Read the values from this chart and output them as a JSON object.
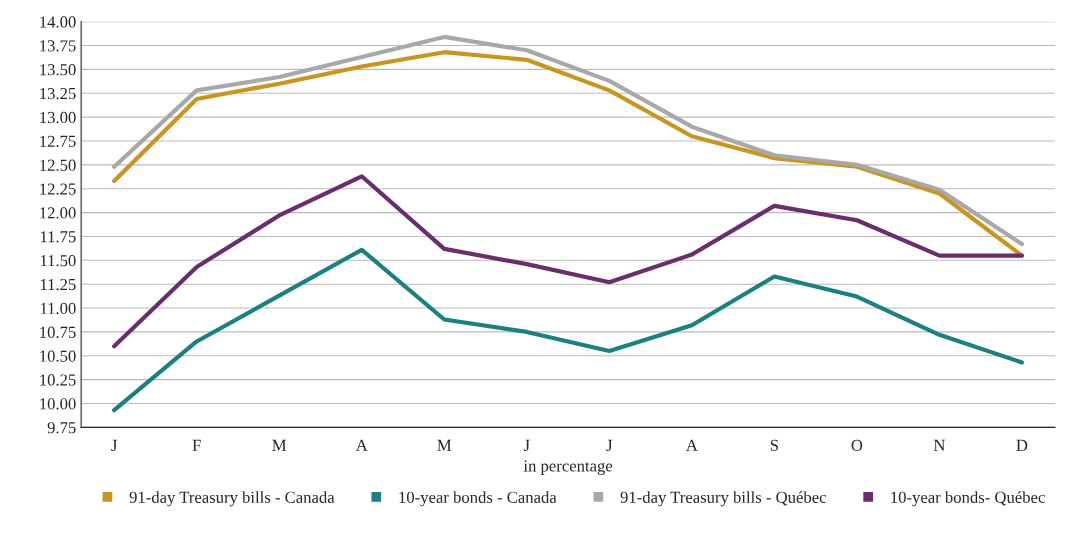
{
  "chart_data": {
    "type": "line",
    "xlabel": "in percentage",
    "categories": [
      "J",
      "F",
      "M",
      "A",
      "M",
      "J",
      "J",
      "A",
      "S",
      "O",
      "N",
      "D"
    ],
    "series": [
      {
        "name": "91-day Treasury bills - Canada",
        "color": "#c8961e",
        "values": [
          12.33,
          13.19,
          13.35,
          13.53,
          13.68,
          13.6,
          13.28,
          12.8,
          12.57,
          12.48,
          12.2,
          11.55
        ]
      },
      {
        "name": "10-year bonds - Canada",
        "color": "#1a8080",
        "values": [
          9.93,
          10.65,
          11.13,
          11.61,
          10.88,
          10.75,
          10.55,
          10.82,
          11.33,
          11.12,
          10.72,
          10.43
        ]
      },
      {
        "name": "91-day Treasury bills - Québec",
        "color": "#a8a8a8",
        "values": [
          12.48,
          13.28,
          13.42,
          13.63,
          13.84,
          13.7,
          13.38,
          12.9,
          12.6,
          12.5,
          12.24,
          11.67
        ]
      },
      {
        "name": "10-year bonds- Québec",
        "color": "#6a2d6e",
        "values": [
          10.6,
          11.43,
          11.97,
          12.38,
          11.62,
          11.46,
          11.27,
          11.56,
          12.07,
          11.92,
          11.55,
          11.55
        ]
      }
    ],
    "ylim": [
      9.75,
      14.0
    ],
    "yticks": [
      {
        "value": 9.75,
        "label": "9.75"
      },
      {
        "value": 10.0,
        "label": "10.00"
      },
      {
        "value": 10.25,
        "label": "10.25"
      },
      {
        "value": 10.5,
        "label": "10.50"
      },
      {
        "value": 10.75,
        "label": "10.75"
      },
      {
        "value": 11.0,
        "label": "11.00"
      },
      {
        "value": 11.25,
        "label": "11.25"
      },
      {
        "value": 11.5,
        "label": "11.50"
      },
      {
        "value": 11.75,
        "label": "11.75"
      },
      {
        "value": 12.0,
        "label": "12.00"
      },
      {
        "value": 12.25,
        "label": "12.25"
      },
      {
        "value": 12.5,
        "label": "12.50"
      },
      {
        "value": 12.75,
        "label": "12.75"
      },
      {
        "value": 13.0,
        "label": "13.00"
      },
      {
        "value": 13.25,
        "label": "13.25"
      },
      {
        "value": 13.5,
        "label": "13.50"
      },
      {
        "value": 13.75,
        "label": "13.75"
      },
      {
        "value": 14.0,
        "label": "14.00"
      }
    ],
    "grid": "y",
    "legend": "bottom",
    "marker": "none",
    "line_style": "solid"
  }
}
